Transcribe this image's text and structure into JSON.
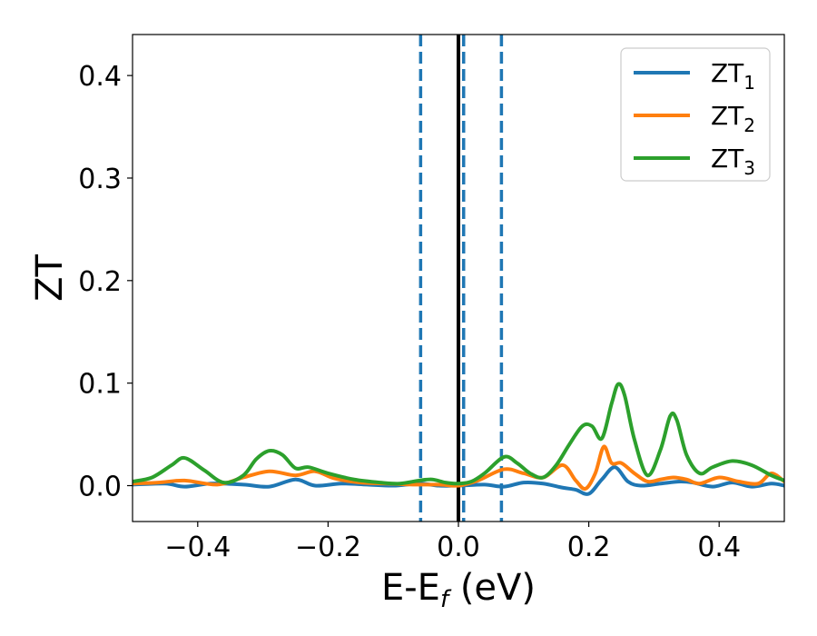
{
  "chart_data": {
    "type": "line",
    "xlabel": {
      "main": "E-E",
      "sub": "f",
      "unit": " (eV)"
    },
    "ylabel": "ZT",
    "xlim": [
      -0.5,
      0.5
    ],
    "ylim": [
      -0.035,
      0.44
    ],
    "x_ticks": [
      -0.4,
      -0.2,
      0.0,
      0.2,
      0.4
    ],
    "x_tick_labels": [
      "−0.4",
      "−0.2",
      "0.0",
      "0.2",
      "0.4"
    ],
    "y_ticks": [
      0.0,
      0.1,
      0.2,
      0.3,
      0.4
    ],
    "y_tick_labels": [
      "0.0",
      "0.1",
      "0.2",
      "0.3",
      "0.4"
    ],
    "grid": false,
    "legend_position": "top-right",
    "vertical_lines": [
      {
        "x": 0.0,
        "style": "solid",
        "color": "#000000"
      },
      {
        "x": -0.058,
        "style": "dashed",
        "color": "#1f77b4"
      },
      {
        "x": 0.008,
        "style": "dashed",
        "color": "#1f77b4"
      },
      {
        "x": 0.066,
        "style": "dashed",
        "color": "#1f77b4"
      }
    ],
    "series": [
      {
        "name": "ZT",
        "name_sub": "1",
        "color": "#1f77b4",
        "points": [
          [
            -0.5,
            0.001
          ],
          [
            -0.45,
            0.002
          ],
          [
            -0.42,
            -0.001
          ],
          [
            -0.38,
            0.002
          ],
          [
            -0.33,
            0.001
          ],
          [
            -0.29,
            -0.001
          ],
          [
            -0.25,
            0.006
          ],
          [
            -0.22,
            0.0
          ],
          [
            -0.18,
            0.002
          ],
          [
            -0.14,
            0.001
          ],
          [
            -0.1,
            0.0
          ],
          [
            -0.06,
            0.002
          ],
          [
            -0.03,
            0.0
          ],
          [
            0.0,
            0.0
          ],
          [
            0.04,
            0.001
          ],
          [
            0.07,
            -0.001
          ],
          [
            0.1,
            0.003
          ],
          [
            0.13,
            0.002
          ],
          [
            0.16,
            -0.002
          ],
          [
            0.18,
            -0.004
          ],
          [
            0.2,
            -0.008
          ],
          [
            0.22,
            0.006
          ],
          [
            0.24,
            0.018
          ],
          [
            0.26,
            0.004
          ],
          [
            0.28,
            0.0
          ],
          [
            0.31,
            0.002
          ],
          [
            0.34,
            0.004
          ],
          [
            0.36,
            0.003
          ],
          [
            0.39,
            -0.001
          ],
          [
            0.42,
            0.003
          ],
          [
            0.45,
            -0.001
          ],
          [
            0.48,
            0.002
          ],
          [
            0.5,
            0.0
          ]
        ]
      },
      {
        "name": "ZT",
        "name_sub": "2",
        "color": "#ff7f0e",
        "points": [
          [
            -0.5,
            0.002
          ],
          [
            -0.46,
            0.003
          ],
          [
            -0.42,
            0.005
          ],
          [
            -0.37,
            0.001
          ],
          [
            -0.33,
            0.008
          ],
          [
            -0.29,
            0.014
          ],
          [
            -0.25,
            0.01
          ],
          [
            -0.22,
            0.014
          ],
          [
            -0.19,
            0.007
          ],
          [
            -0.15,
            0.003
          ],
          [
            -0.11,
            0.002
          ],
          [
            -0.07,
            0.001
          ],
          [
            -0.03,
            0.001
          ],
          [
            0.0,
            0.0
          ],
          [
            0.03,
            0.005
          ],
          [
            0.07,
            0.016
          ],
          [
            0.1,
            0.012
          ],
          [
            0.13,
            0.008
          ],
          [
            0.16,
            0.02
          ],
          [
            0.18,
            0.005
          ],
          [
            0.195,
            -0.003
          ],
          [
            0.21,
            0.012
          ],
          [
            0.223,
            0.038
          ],
          [
            0.235,
            0.022
          ],
          [
            0.25,
            0.022
          ],
          [
            0.27,
            0.012
          ],
          [
            0.29,
            0.004
          ],
          [
            0.31,
            0.006
          ],
          [
            0.33,
            0.008
          ],
          [
            0.35,
            0.006
          ],
          [
            0.37,
            0.002
          ],
          [
            0.4,
            0.008
          ],
          [
            0.43,
            0.004
          ],
          [
            0.46,
            0.002
          ],
          [
            0.48,
            0.012
          ],
          [
            0.5,
            0.004
          ]
        ]
      },
      {
        "name": "ZT",
        "name_sub": "3",
        "color": "#2ca02c",
        "points": [
          [
            -0.5,
            0.004
          ],
          [
            -0.47,
            0.008
          ],
          [
            -0.44,
            0.02
          ],
          [
            -0.42,
            0.027
          ],
          [
            -0.39,
            0.015
          ],
          [
            -0.36,
            0.003
          ],
          [
            -0.33,
            0.01
          ],
          [
            -0.31,
            0.026
          ],
          [
            -0.29,
            0.034
          ],
          [
            -0.27,
            0.03
          ],
          [
            -0.25,
            0.017
          ],
          [
            -0.23,
            0.018
          ],
          [
            -0.2,
            0.012
          ],
          [
            -0.16,
            0.006
          ],
          [
            -0.12,
            0.003
          ],
          [
            -0.09,
            0.002
          ],
          [
            -0.06,
            0.005
          ],
          [
            -0.04,
            0.006
          ],
          [
            -0.02,
            0.003
          ],
          [
            0.0,
            0.002
          ],
          [
            0.02,
            0.004
          ],
          [
            0.04,
            0.012
          ],
          [
            0.07,
            0.028
          ],
          [
            0.09,
            0.022
          ],
          [
            0.11,
            0.012
          ],
          [
            0.13,
            0.008
          ],
          [
            0.15,
            0.02
          ],
          [
            0.17,
            0.04
          ],
          [
            0.19,
            0.058
          ],
          [
            0.205,
            0.058
          ],
          [
            0.22,
            0.046
          ],
          [
            0.235,
            0.08
          ],
          [
            0.245,
            0.099
          ],
          [
            0.255,
            0.088
          ],
          [
            0.27,
            0.045
          ],
          [
            0.29,
            0.01
          ],
          [
            0.31,
            0.035
          ],
          [
            0.325,
            0.068
          ],
          [
            0.335,
            0.064
          ],
          [
            0.35,
            0.03
          ],
          [
            0.37,
            0.012
          ],
          [
            0.39,
            0.018
          ],
          [
            0.42,
            0.024
          ],
          [
            0.45,
            0.02
          ],
          [
            0.48,
            0.01
          ],
          [
            0.5,
            0.005
          ]
        ]
      }
    ]
  }
}
